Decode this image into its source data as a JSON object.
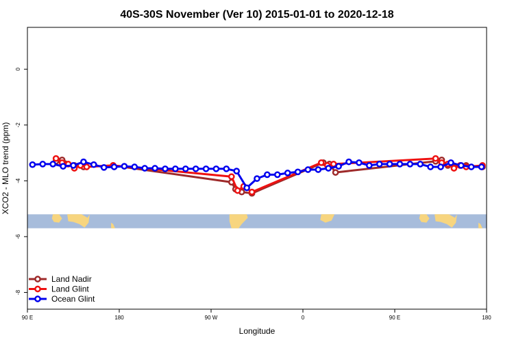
{
  "chart_data": {
    "type": "line",
    "title": "40S-30S November (Ver 10)   2015-01-01 to 2020-12-18",
    "xlabel": "Longitude",
    "ylabel": "XCO2 - MLO trend (ppm)",
    "x_ticks": [
      {
        "value": 90,
        "label": "90 E"
      },
      {
        "value": 180,
        "label": "180"
      },
      {
        "value": 270,
        "label": "90 W"
      },
      {
        "value": 360,
        "label": "0"
      },
      {
        "value": 450,
        "label": "90 E"
      },
      {
        "value": 540,
        "label": "180"
      }
    ],
    "y_ticks": [
      {
        "value": 0,
        "label": "0"
      },
      {
        "value": -2,
        "label": "-2"
      },
      {
        "value": -4,
        "label": "-4"
      },
      {
        "value": -6,
        "label": "-6"
      },
      {
        "value": -8,
        "label": "-8"
      }
    ],
    "xlim": [
      90,
      540
    ],
    "ylim": [
      -8.6,
      1.5
    ],
    "legend_position": "bottom-left",
    "colors": {
      "axis": "#000000",
      "map_ocean": "#a7bcdb",
      "map_land": "#f7d57f"
    },
    "map_band": {
      "lat_range": [
        -40,
        -30
      ],
      "y_range": [
        -5.7,
        -5.2
      ]
    },
    "series": [
      {
        "name": "Land Nadir",
        "color": "#9e2a2a",
        "x": [
          118,
          124,
          136,
          145,
          174,
          290,
          294,
          300,
          310,
          380,
          386,
          392,
          490,
          496,
          502,
          508,
          520,
          536
        ],
        "y": [
          -3.3,
          -3.25,
          -3.45,
          -3.5,
          -3.45,
          -4.05,
          -4.3,
          -4.4,
          -4.45,
          -3.35,
          -3.4,
          -3.7,
          -3.3,
          -3.25,
          -3.45,
          -3.5,
          -3.45,
          -3.5
        ]
      },
      {
        "name": "Land Glint",
        "color": "#ee1111",
        "x": [
          118,
          124,
          130,
          136,
          142,
          148,
          174,
          290,
          296,
          302,
          310,
          378,
          384,
          390,
          490,
          496,
          502,
          508,
          514,
          520,
          536
        ],
        "y": [
          -3.2,
          -3.35,
          -3.4,
          -3.55,
          -3.45,
          -3.5,
          -3.45,
          -3.85,
          -4.35,
          -4.2,
          -4.4,
          -3.35,
          -3.45,
          -3.4,
          -3.2,
          -3.35,
          -3.4,
          -3.55,
          -3.45,
          -3.5,
          -3.45
        ]
      },
      {
        "name": "Ocean Glint",
        "color": "#0000ee",
        "x": [
          95,
          105,
          115,
          125,
          135,
          145,
          155,
          165,
          175,
          185,
          195,
          205,
          215,
          225,
          235,
          245,
          255,
          265,
          275,
          285,
          295,
          305,
          315,
          325,
          335,
          345,
          355,
          365,
          375,
          385,
          395,
          405,
          415,
          425,
          435,
          445,
          455,
          465,
          475,
          485,
          495,
          505,
          515,
          525,
          535
        ],
        "y": [
          -3.42,
          -3.4,
          -3.4,
          -3.48,
          -3.45,
          -3.32,
          -3.42,
          -3.52,
          -3.5,
          -3.48,
          -3.5,
          -3.55,
          -3.55,
          -3.57,
          -3.57,
          -3.57,
          -3.57,
          -3.57,
          -3.57,
          -3.57,
          -3.65,
          -4.25,
          -3.92,
          -3.78,
          -3.78,
          -3.72,
          -3.68,
          -3.6,
          -3.6,
          -3.55,
          -3.48,
          -3.32,
          -3.35,
          -3.45,
          -3.4,
          -3.4,
          -3.4,
          -3.4,
          -3.4,
          -3.5,
          -3.5,
          -3.35,
          -3.45,
          -3.5,
          -3.5
        ]
      }
    ]
  }
}
